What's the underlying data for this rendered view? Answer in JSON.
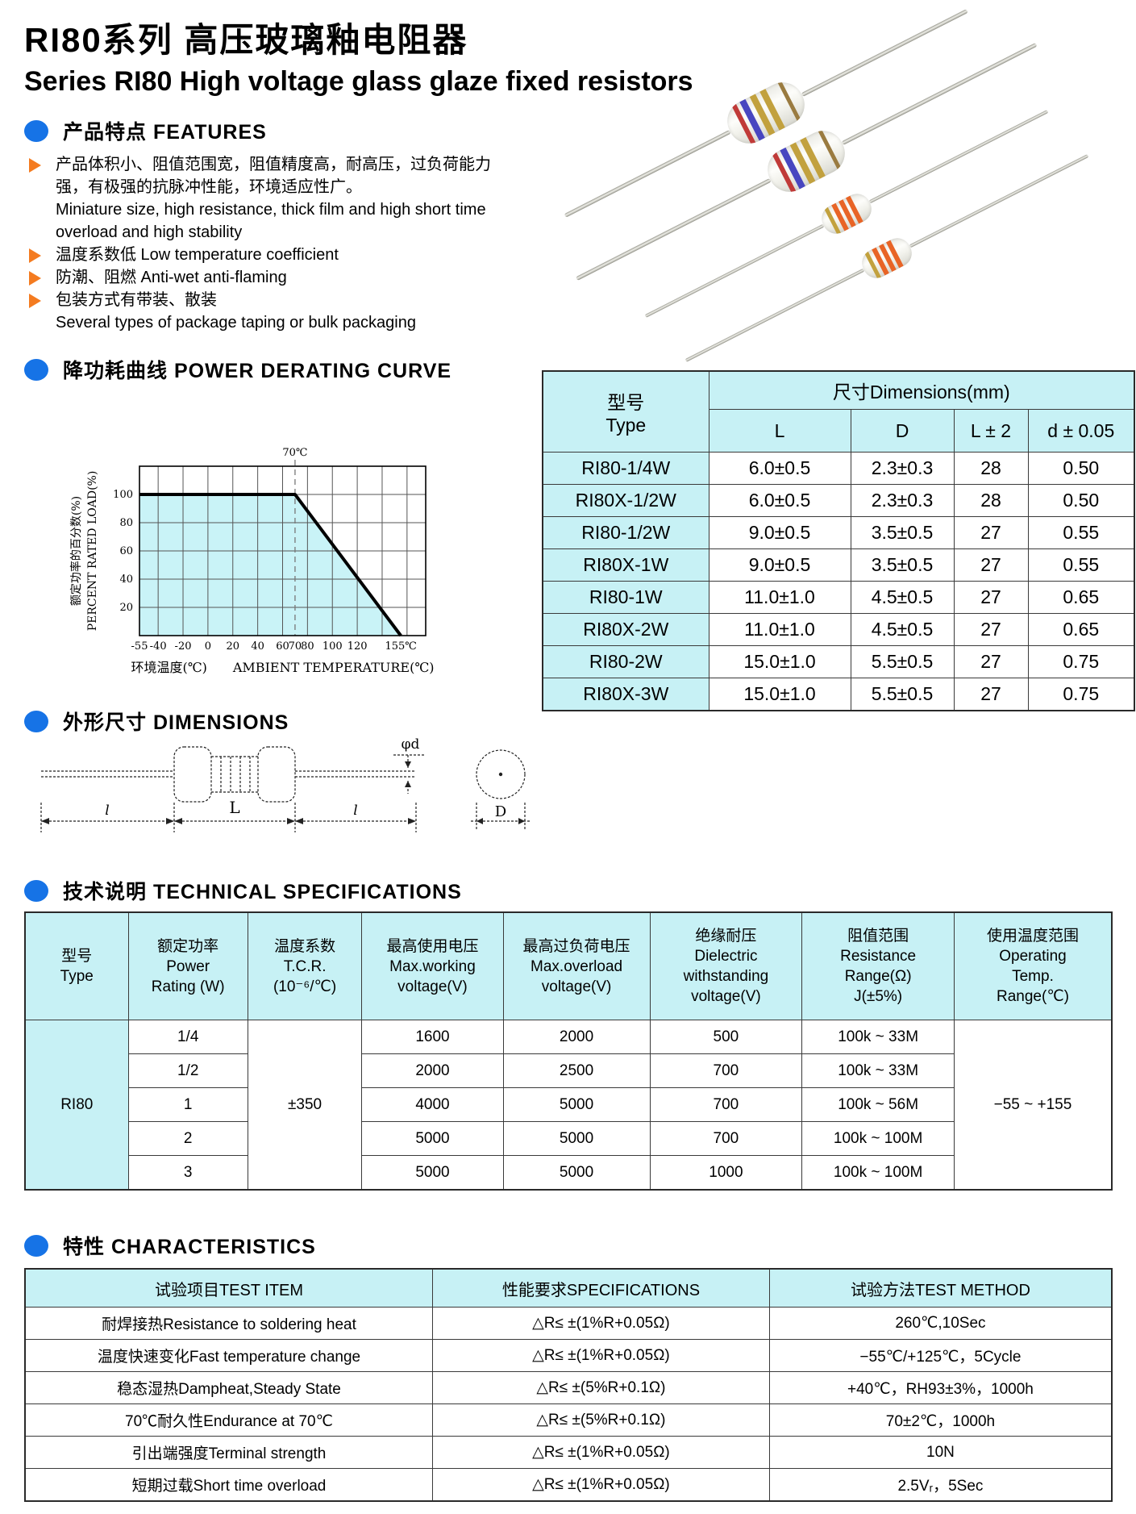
{
  "page": {
    "title_zh": "RI80系列 高压玻璃釉电阻器",
    "title_en": "Series RI80 High voltage glass glaze fixed resistors"
  },
  "colors": {
    "accent_blue": "#1673e6",
    "accent_orange": "#f47b20",
    "table_header_bg": "#c7f1f5",
    "chart_fill": "#c9f3f7"
  },
  "features": {
    "heading": "产品特点 FEATURES",
    "items": [
      {
        "lines": [
          "产品体积小、阻值范围宽，阻值精度高，耐高压，过负荷能力",
          "强，有极强的抗脉冲性能，环境适应性广。",
          "Miniature size, high resistance, thick film and high short time",
          "overload and high stability"
        ]
      },
      {
        "lines": [
          "温度系数低 Low temperature coefficient"
        ]
      },
      {
        "lines": [
          "防潮、阻燃 Anti-wet anti-flaming"
        ]
      },
      {
        "lines": [
          "包装方式有带装、散装",
          "Several types of package taping or bulk packaging"
        ]
      }
    ]
  },
  "derating": {
    "heading": "降功耗曲线 POWER DERATING CURVE"
  },
  "chart_data": {
    "type": "line",
    "title": "POWER DERATING CURVE",
    "x": [
      -55,
      70,
      155
    ],
    "y": [
      100,
      100,
      0
    ],
    "xlabel": "环境温度(℃)　　AMBIENT TEMPERATURE(℃)",
    "ylabel_zh": "额定功率的百分数(%)",
    "ylabel_en": "PERCENT RATED LOAD(%)",
    "xlim": [
      -55,
      175
    ],
    "ylim": [
      0,
      120
    ],
    "x_grid": [
      -40,
      -20,
      0,
      20,
      40,
      60,
      80,
      100,
      120,
      140,
      160
    ],
    "y_grid": [
      20,
      40,
      60,
      80,
      100
    ],
    "dashed_x": 70,
    "annotation": "70℃",
    "x_tick_vals": [
      -55,
      -40,
      -20,
      0,
      20,
      40,
      60,
      70,
      80,
      100,
      120,
      155
    ],
    "x_tick_labels": [
      "-55",
      "-40",
      "-20",
      "0",
      "20",
      "40",
      "60",
      "70",
      "80",
      "100",
      "120",
      "155℃"
    ],
    "y_tick_vals": [
      20,
      40,
      60,
      80,
      100
    ],
    "y_tick_labels": [
      "20",
      "40",
      "60",
      "80",
      "100"
    ],
    "grid": true,
    "legend": "none"
  },
  "dim_section": {
    "heading": "外形尺寸 DIMENSIONS",
    "labels": {
      "phid": "φd",
      "l_left": "l",
      "L": "L",
      "l_right": "l",
      "D": "D"
    }
  },
  "dim_table": {
    "header_type": [
      "型号",
      "Type"
    ],
    "header_group": "尺寸Dimensions(mm)",
    "sub_headers": [
      "L",
      "D",
      "L ± 2",
      "d ± 0.05"
    ],
    "rows": [
      [
        "RI80-1/4W",
        "6.0±0.5",
        "2.3±0.3",
        "28",
        "0.50"
      ],
      [
        "RI80X-1/2W",
        "6.0±0.5",
        "2.3±0.3",
        "28",
        "0.50"
      ],
      [
        "RI80-1/2W",
        "9.0±0.5",
        "3.5±0.5",
        "27",
        "0.55"
      ],
      [
        "RI80X-1W",
        "9.0±0.5",
        "3.5±0.5",
        "27",
        "0.55"
      ],
      [
        "RI80-1W",
        "11.0±1.0",
        "4.5±0.5",
        "27",
        "0.65"
      ],
      [
        "RI80X-2W",
        "11.0±1.0",
        "4.5±0.5",
        "27",
        "0.65"
      ],
      [
        "RI80-2W",
        "15.0±1.0",
        "5.5±0.5",
        "27",
        "0.75"
      ],
      [
        "RI80X-3W",
        "15.0±1.0",
        "5.5±0.5",
        "27",
        "0.75"
      ]
    ]
  },
  "tech_section": {
    "heading": "技术说明 TECHNICAL SPECIFICATIONS"
  },
  "tech_table": {
    "headers": [
      [
        "型号",
        "Type"
      ],
      [
        "额定功率",
        "Power",
        "Rating (W)"
      ],
      [
        "温度系数",
        "T.C.R.",
        "(10⁻⁶/℃)"
      ],
      [
        "最高使用电压",
        "Max.working",
        "voltage(V)"
      ],
      [
        "最高过负荷电压",
        "Max.overload",
        "voltage(V)"
      ],
      [
        "绝缘耐压",
        "Dielectric",
        "withstanding",
        "voltage(V)"
      ],
      [
        "阻值范围",
        "Resistance",
        "Range(Ω)",
        "J(±5%)"
      ],
      [
        "使用温度范围",
        "Operating",
        "Temp.",
        "Range(℃)"
      ]
    ],
    "type": "RI80",
    "tcr": "±350",
    "temp_range": "−55 ~ +155",
    "rows": [
      [
        "1/4",
        "1600",
        "2000",
        "500",
        "100k ~ 33M"
      ],
      [
        "1/2",
        "2000",
        "2500",
        "700",
        "100k ~ 33M"
      ],
      [
        "1",
        "4000",
        "5000",
        "700",
        "100k ~ 56M"
      ],
      [
        "2",
        "5000",
        "5000",
        "700",
        "100k ~ 100M"
      ],
      [
        "3",
        "5000",
        "5000",
        "1000",
        "100k ~ 100M"
      ]
    ]
  },
  "char_section": {
    "heading": "特性 CHARACTERISTICS"
  },
  "char_table": {
    "headers": [
      "试验项目TEST ITEM",
      "性能要求SPECIFICATIONS",
      "试验方法TEST METHOD"
    ],
    "rows": [
      [
        "耐焊接热Resistance to soldering heat",
        "△R≤ ±(1%R+0.05Ω)",
        "260℃,10Sec"
      ],
      [
        "温度快速变化Fast temperature change",
        "△R≤ ±(1%R+0.05Ω)",
        "−55℃/+125℃，5Cycle"
      ],
      [
        "稳态湿热Dampheat,Steady State",
        "△R≤ ±(5%R+0.1Ω)",
        "+40℃，RH93±3%，1000h"
      ],
      [
        "70℃耐久性Endurance at 70℃",
        "△R≤ ±(5%R+0.1Ω)",
        "70±2℃，1000h"
      ],
      [
        "引出端强度Terminal strength",
        "△R≤ ±(1%R+0.05Ω)",
        "10N"
      ],
      [
        "短期过载Short time overload",
        "△R≤ ±(1%R+0.05Ω)",
        "2.5Vᵣ，5Sec"
      ]
    ]
  },
  "photo": {
    "big_bands": [
      {
        "x": 16,
        "w": 6,
        "c": "#c03a38"
      },
      {
        "x": 27,
        "w": 8,
        "c": "#4846c0"
      },
      {
        "x": 41,
        "w": 8,
        "c": "#c2a13e"
      },
      {
        "x": 55,
        "w": 8,
        "c": "#c2a13e"
      },
      {
        "x": 80,
        "w": 5,
        "c": "#9a7b40"
      }
    ],
    "small_bands": [
      {
        "x": 10,
        "w": 5,
        "c": "#c2a13e"
      },
      {
        "x": 20,
        "w": 6,
        "c": "#e86426"
      },
      {
        "x": 30,
        "w": 6,
        "c": "#e86426"
      },
      {
        "x": 40,
        "w": 6,
        "c": "#e86426"
      }
    ]
  }
}
